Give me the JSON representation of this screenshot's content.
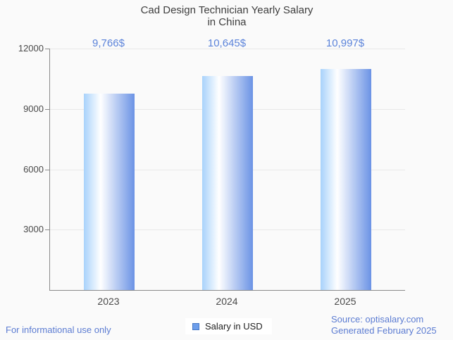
{
  "chart": {
    "title_line1": "Cad Design Technician Yearly Salary",
    "title_line2": "in China"
  },
  "chart_data": {
    "type": "bar",
    "title": "Cad Design Technician Yearly Salary in China",
    "categories": [
      "2023",
      "2024",
      "2025"
    ],
    "series": [
      {
        "name": "Salary in USD",
        "values": [
          9766,
          10645,
          10997
        ]
      }
    ],
    "value_labels": [
      "9,766$",
      "10,645$",
      "10,997$"
    ],
    "xlabel": "",
    "ylabel": "",
    "ylim": [
      0,
      12000
    ],
    "yticks": [
      3000,
      6000,
      9000,
      12000
    ],
    "grid": true,
    "legend_position": "bottom"
  },
  "legend": {
    "label": "Salary in USD"
  },
  "footer": {
    "disclaimer": "For informational use only",
    "source": "Source: optisalary.com",
    "generated": "Generated February 2025"
  },
  "colors": {
    "background": "#fafafa",
    "title": "#3e3e3e",
    "tick_label": "#4a4a4a",
    "axis": "#8a8a8a",
    "gridline": "#e8e8e8",
    "value_label": "#5b83da",
    "footer_text": "#5c7cd2",
    "bar_grad_left": "#a8d2fb",
    "bar_grad_mid": "#ffffff",
    "bar_grad_right": "#6b93e5",
    "legend_swatch_fill": "#6d9eeb",
    "legend_swatch_border": "#4879c5"
  }
}
